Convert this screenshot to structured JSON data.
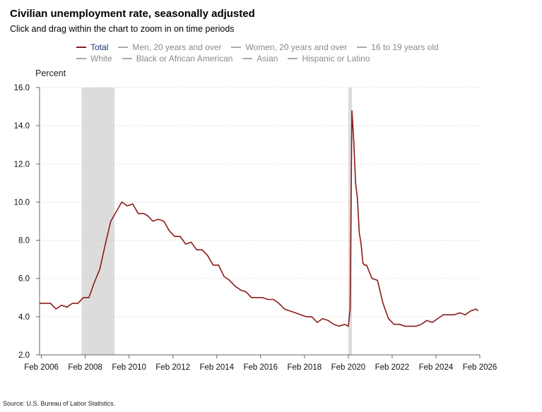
{
  "title": "Civilian unemployment rate, seasonally adjusted",
  "subtitle": "Click and drag within the chart to zoom in on time periods",
  "legend": {
    "row1": [
      {
        "label": "Total",
        "color": "#8b1a1a",
        "active": true
      },
      {
        "label": "Men, 20 years and over",
        "color": "#aaaaaa",
        "active": false
      },
      {
        "label": "Women, 20 years and over",
        "color": "#aaaaaa",
        "active": false
      },
      {
        "label": "16 to 19 years old",
        "color": "#aaaaaa",
        "active": false
      }
    ],
    "row2": [
      {
        "label": "White",
        "color": "#aaaaaa",
        "active": false
      },
      {
        "label": "Black or African American",
        "color": "#aaaaaa",
        "active": false
      },
      {
        "label": "Asian",
        "color": "#aaaaaa",
        "active": false
      },
      {
        "label": "Hispanic or Latino",
        "color": "#aaaaaa",
        "active": false
      }
    ]
  },
  "source": "Source: U.S. Bureau of Labor Statistics.",
  "chart_data": {
    "type": "line",
    "ylabel": "Percent",
    "ylim": [
      2.0,
      16.0
    ],
    "yticks": [
      "2.0",
      "4.0",
      "6.0",
      "8.0",
      "10.0",
      "12.0",
      "14.0",
      "16.0"
    ],
    "xlim": [
      "2006-01",
      "2026-02"
    ],
    "xticks": [
      "Feb 2006",
      "Feb 2008",
      "Feb 2010",
      "Feb 2012",
      "Feb 2014",
      "Feb 2016",
      "Feb 2018",
      "Feb 2020",
      "Feb 2022",
      "Feb 2024",
      "Feb 2026"
    ],
    "grid": "horizontal dotted",
    "recessions": [
      {
        "start": "2007-12",
        "end": "2009-06"
      },
      {
        "start": "2020-02",
        "end": "2020-04"
      }
    ],
    "line_color": "#8b1a1a",
    "recession_color": "#dcdcdc",
    "series": [
      {
        "name": "Total",
        "x": [
          "2006-01",
          "2006-04",
          "2006-07",
          "2006-10",
          "2007-01",
          "2007-04",
          "2007-07",
          "2007-10",
          "2008-01",
          "2008-04",
          "2008-07",
          "2008-10",
          "2009-01",
          "2009-04",
          "2009-07",
          "2009-10",
          "2010-01",
          "2010-04",
          "2010-07",
          "2010-10",
          "2010-12",
          "2011-03",
          "2011-06",
          "2011-09",
          "2011-12",
          "2012-03",
          "2012-06",
          "2012-09",
          "2012-12",
          "2013-03",
          "2013-06",
          "2013-09",
          "2013-12",
          "2014-03",
          "2014-06",
          "2014-09",
          "2014-12",
          "2015-03",
          "2015-06",
          "2015-09",
          "2015-12",
          "2016-03",
          "2016-06",
          "2016-09",
          "2016-12",
          "2017-03",
          "2017-06",
          "2017-09",
          "2017-12",
          "2018-03",
          "2018-06",
          "2018-09",
          "2018-12",
          "2019-03",
          "2019-06",
          "2019-09",
          "2019-12",
          "2020-02",
          "2020-03",
          "2020-04",
          "2020-05",
          "2020-06",
          "2020-07",
          "2020-08",
          "2020-09",
          "2020-10",
          "2020-11",
          "2020-12",
          "2021-03",
          "2021-06",
          "2021-09",
          "2021-12",
          "2022-03",
          "2022-06",
          "2022-09",
          "2022-12",
          "2023-03",
          "2023-06",
          "2023-09",
          "2023-12",
          "2024-03",
          "2024-06",
          "2024-09",
          "2024-12",
          "2025-03",
          "2025-06",
          "2025-09",
          "2025-12",
          "2026-01"
        ],
        "values": [
          4.7,
          4.7,
          4.7,
          4.4,
          4.6,
          4.5,
          4.7,
          4.7,
          5.0,
          5.0,
          5.8,
          6.5,
          7.8,
          9.0,
          9.5,
          10.0,
          9.8,
          9.9,
          9.4,
          9.4,
          9.3,
          9.0,
          9.1,
          9.0,
          8.5,
          8.2,
          8.2,
          7.8,
          7.9,
          7.5,
          7.5,
          7.2,
          6.7,
          6.7,
          6.1,
          5.9,
          5.6,
          5.4,
          5.3,
          5.0,
          5.0,
          5.0,
          4.9,
          4.9,
          4.7,
          4.4,
          4.3,
          4.2,
          4.1,
          4.0,
          4.0,
          3.7,
          3.9,
          3.8,
          3.6,
          3.5,
          3.6,
          3.5,
          4.4,
          14.8,
          13.2,
          11.0,
          10.2,
          8.4,
          7.8,
          6.8,
          6.7,
          6.7,
          6.0,
          5.9,
          4.7,
          3.9,
          3.6,
          3.6,
          3.5,
          3.5,
          3.5,
          3.6,
          3.8,
          3.7,
          3.9,
          4.1,
          4.1,
          4.1,
          4.2,
          4.1,
          4.3,
          4.4,
          4.3
        ]
      }
    ]
  }
}
